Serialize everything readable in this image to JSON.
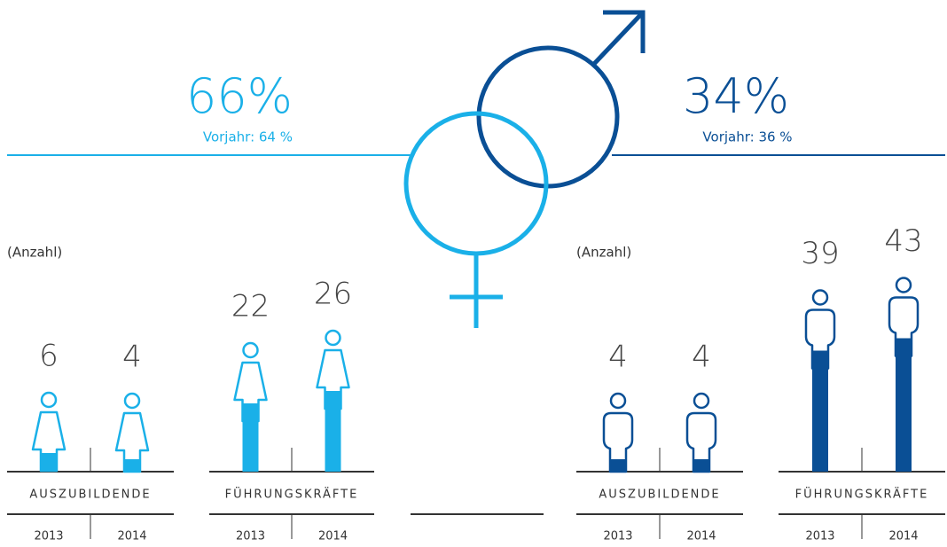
{
  "headline": [
    {
      "label": "66%",
      "value": 66,
      "note": "Vorjahr: 64 %"
    },
    {
      "label": "34%",
      "value": 34,
      "note": "Vorjahr: 36 %"
    }
  ],
  "units": [
    "(Anzahl)",
    "(Anzahl)"
  ],
  "chart_data": [
    {
      "type": "bar",
      "title": "AUSZUBILDENDE",
      "categories": [
        "2013",
        "2014"
      ],
      "values": [
        6,
        4
      ],
      "color": "#1ab0e8",
      "icon": "female"
    },
    {
      "type": "bar",
      "title": "FÜHRUNGSKRÄFTE",
      "categories": [
        "2013",
        "2014"
      ],
      "values": [
        22,
        26
      ],
      "color": "#1ab0e8",
      "icon": "female"
    },
    {
      "type": "bar",
      "title": "AUSZUBILDENDE",
      "categories": [
        "2013",
        "2014"
      ],
      "values": [
        4,
        4
      ],
      "color": "#0a4f95",
      "icon": "male"
    },
    {
      "type": "bar",
      "title": "FÜHRUNGSKRÄFTE",
      "categories": [
        "2013",
        "2014"
      ],
      "values": [
        39,
        43
      ],
      "color": "#0a4f95",
      "icon": "male"
    }
  ]
}
